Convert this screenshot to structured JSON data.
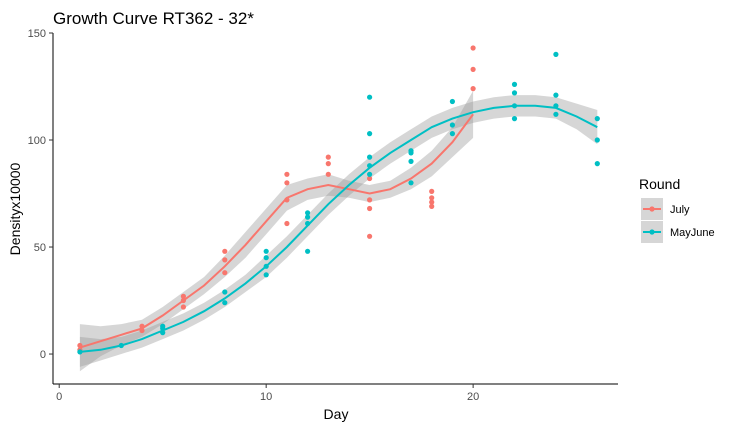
{
  "chart_data": {
    "type": "scatter",
    "title": "Growth Curve RT362 - 32*",
    "xlabel": "Day",
    "ylabel": "Densityx10000",
    "xlim": [
      -0.3,
      27
    ],
    "ylim": [
      -14,
      150
    ],
    "xticks": [
      0,
      10,
      20
    ],
    "yticks": [
      0,
      50,
      100,
      150
    ],
    "grid": false,
    "legend": {
      "title": "Round",
      "placement": "right"
    },
    "series": [
      {
        "name": "July",
        "color": "#F8766D",
        "points": [
          [
            1,
            2
          ],
          [
            1,
            4
          ],
          [
            4,
            11
          ],
          [
            4,
            13
          ],
          [
            6,
            22
          ],
          [
            6,
            25
          ],
          [
            6,
            27
          ],
          [
            8,
            38
          ],
          [
            8,
            44
          ],
          [
            8,
            48
          ],
          [
            11,
            61
          ],
          [
            11,
            72
          ],
          [
            11,
            80
          ],
          [
            11,
            84
          ],
          [
            13,
            84
          ],
          [
            13,
            89
          ],
          [
            13,
            92
          ],
          [
            15,
            55
          ],
          [
            15,
            68
          ],
          [
            15,
            72
          ],
          [
            15,
            82
          ],
          [
            18,
            69
          ],
          [
            18,
            71
          ],
          [
            18,
            73
          ],
          [
            18,
            76
          ],
          [
            20,
            124
          ],
          [
            20,
            133
          ],
          [
            20,
            143
          ]
        ],
        "smooth": [
          [
            1,
            3
          ],
          [
            2,
            6
          ],
          [
            3,
            9
          ],
          [
            4,
            12
          ],
          [
            5,
            18
          ],
          [
            6,
            25
          ],
          [
            7,
            32
          ],
          [
            8,
            41
          ],
          [
            9,
            51
          ],
          [
            10,
            62
          ],
          [
            11,
            73
          ],
          [
            12,
            77
          ],
          [
            13,
            79
          ],
          [
            14,
            77
          ],
          [
            15,
            75
          ],
          [
            16,
            77
          ],
          [
            17,
            82
          ],
          [
            18,
            89
          ],
          [
            19,
            99
          ],
          [
            20,
            112
          ]
        ],
        "band_width": [
          11,
          7,
          5,
          4,
          4,
          4,
          4,
          5,
          6,
          6,
          6,
          5,
          5,
          4,
          4,
          4,
          5,
          6,
          7,
          11
        ]
      },
      {
        "name": "MayJune",
        "color": "#00BFC4",
        "points": [
          [
            1,
            1
          ],
          [
            3,
            4
          ],
          [
            5,
            10
          ],
          [
            5,
            12
          ],
          [
            5,
            13
          ],
          [
            8,
            24
          ],
          [
            8,
            29
          ],
          [
            10,
            37
          ],
          [
            10,
            41
          ],
          [
            10,
            45
          ],
          [
            10,
            48
          ],
          [
            12,
            48
          ],
          [
            12,
            61
          ],
          [
            12,
            64
          ],
          [
            12,
            66
          ],
          [
            15,
            84
          ],
          [
            15,
            88
          ],
          [
            15,
            92
          ],
          [
            15,
            103
          ],
          [
            15,
            120
          ],
          [
            17,
            80
          ],
          [
            17,
            90
          ],
          [
            17,
            94
          ],
          [
            17,
            95
          ],
          [
            19,
            103
          ],
          [
            19,
            107
          ],
          [
            19,
            118
          ],
          [
            22,
            110
          ],
          [
            22,
            116
          ],
          [
            22,
            122
          ],
          [
            22,
            126
          ],
          [
            24,
            112
          ],
          [
            24,
            116
          ],
          [
            24,
            121
          ],
          [
            24,
            140
          ],
          [
            26,
            89
          ],
          [
            26,
            100
          ],
          [
            26,
            110
          ]
        ],
        "smooth": [
          [
            1,
            1
          ],
          [
            2,
            2
          ],
          [
            3,
            4
          ],
          [
            4,
            7
          ],
          [
            5,
            11
          ],
          [
            6,
            15
          ],
          [
            7,
            20
          ],
          [
            8,
            26
          ],
          [
            9,
            33
          ],
          [
            10,
            41
          ],
          [
            11,
            50
          ],
          [
            12,
            60
          ],
          [
            13,
            70
          ],
          [
            14,
            79
          ],
          [
            15,
            87
          ],
          [
            16,
            94
          ],
          [
            17,
            100
          ],
          [
            18,
            106
          ],
          [
            19,
            110
          ],
          [
            20,
            113
          ],
          [
            21,
            115
          ],
          [
            22,
            116
          ],
          [
            23,
            116
          ],
          [
            24,
            115
          ],
          [
            25,
            111
          ],
          [
            26,
            106
          ]
        ],
        "band_width": [
          7,
          5,
          4,
          4,
          4,
          4,
          4,
          4,
          4,
          5,
          5,
          5,
          5,
          5,
          5,
          5,
          5,
          5,
          5,
          5,
          5,
          5,
          5,
          5,
          6,
          8
        ]
      }
    ]
  }
}
